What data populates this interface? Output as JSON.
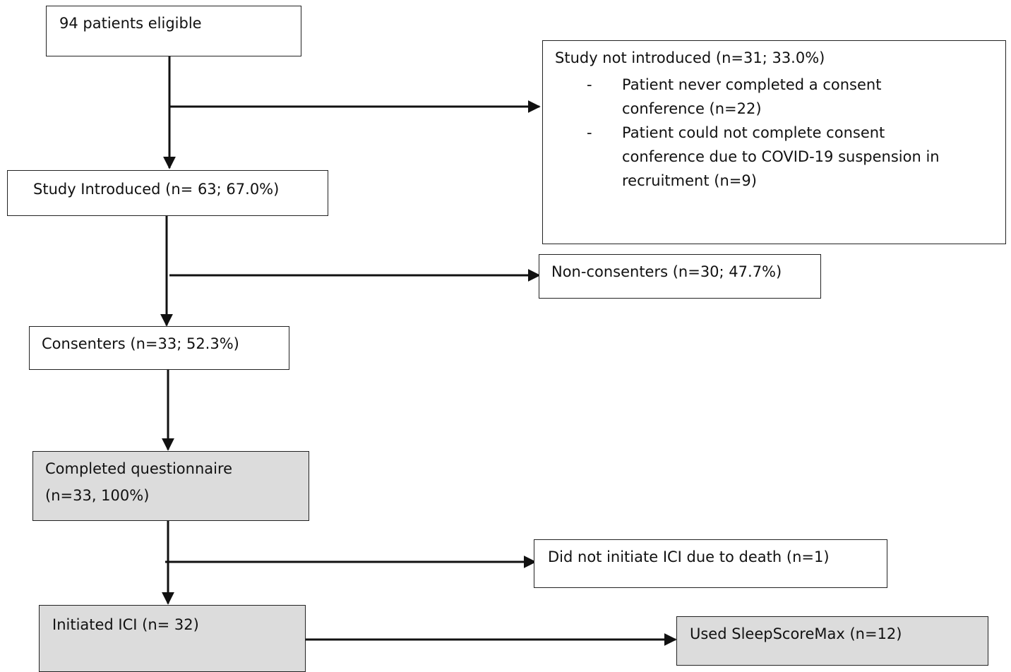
{
  "boxes": {
    "eligible": "94 patients eligible",
    "introduced": "Study Introduced (n= 63; 67.0%)",
    "not_introduced": {
      "title": "Study not introduced (n=31; 33.0%)",
      "bullet_marker": "-",
      "bullets": [
        [
          "Patient never completed a consent",
          "conference (n=22)"
        ],
        [
          "Patient could not complete consent",
          "conference due to COVID-19 suspension in",
          "recruitment (n=9)"
        ]
      ]
    },
    "non_consenters": "Non-consenters (n=30; 47.7%)",
    "consenters": "Consenters (n=33; 52.3%)",
    "questionnaire": [
      "Completed questionnaire",
      "(n=33, 100%)"
    ],
    "no_ici": "Did not initiate ICI due to death (n=1)",
    "initiated": "Initiated ICI (n= 32)",
    "sleepscore": "Used SleepScoreMax (n=12)"
  },
  "colors": {
    "shaded_fill": "#dcdcdc",
    "line": "#111111"
  }
}
